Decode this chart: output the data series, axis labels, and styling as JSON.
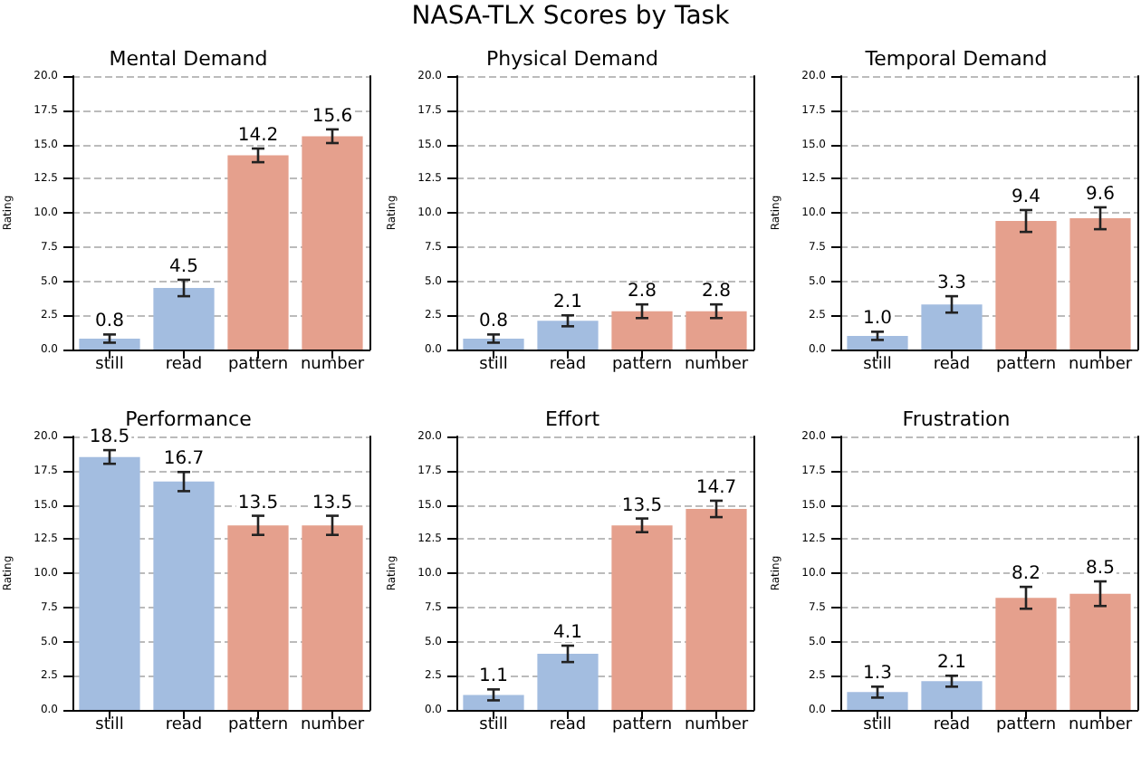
{
  "chart_data": [
    {
      "type": "bar",
      "title": "Mental Demand",
      "annotations": [
        "NASA-TLX Scores by Task"
      ],
      "ylabel": "Rating",
      "categories": [
        "still",
        "read",
        "pattern",
        "number"
      ],
      "values": [
        0.8,
        4.5,
        14.2,
        15.6
      ],
      "errors": [
        0.3,
        0.6,
        0.5,
        0.5
      ],
      "colors": [
        "#a3bde0",
        "#a3bde0",
        "#e5a08d",
        "#e5a08d"
      ],
      "value_labels": [
        "0.8",
        "4.5",
        "14.2",
        "15.6"
      ],
      "ylim": [
        0,
        20
      ],
      "yticks": [
        {
          "value": 0,
          "label": "0.0"
        },
        {
          "value": 2.5,
          "label": "2.5"
        },
        {
          "value": 5,
          "label": "5.0"
        },
        {
          "value": 7.5,
          "label": "7.5"
        },
        {
          "value": 10,
          "label": "10.0"
        },
        {
          "value": 12.5,
          "label": "12.5"
        },
        {
          "value": 15,
          "label": "15.0"
        },
        {
          "value": 17.5,
          "label": "17.5"
        },
        {
          "value": 20,
          "label": "20.0"
        }
      ],
      "grid": "y"
    },
    {
      "type": "bar",
      "title": "Physical Demand",
      "ylabel": "Rating",
      "categories": [
        "still",
        "read",
        "pattern",
        "number"
      ],
      "values": [
        0.8,
        2.1,
        2.8,
        2.8
      ],
      "errors": [
        0.3,
        0.4,
        0.5,
        0.5
      ],
      "colors": [
        "#a3bde0",
        "#a3bde0",
        "#e5a08d",
        "#e5a08d"
      ],
      "value_labels": [
        "0.8",
        "2.1",
        "2.8",
        "2.8"
      ],
      "ylim": [
        0,
        20
      ],
      "yticks": [
        {
          "value": 0,
          "label": "0.0"
        },
        {
          "value": 2.5,
          "label": "2.5"
        },
        {
          "value": 5,
          "label": "5.0"
        },
        {
          "value": 7.5,
          "label": "7.5"
        },
        {
          "value": 10,
          "label": "10.0"
        },
        {
          "value": 12.5,
          "label": "12.5"
        },
        {
          "value": 15,
          "label": "15.0"
        },
        {
          "value": 17.5,
          "label": "17.5"
        },
        {
          "value": 20,
          "label": "20.0"
        }
      ],
      "grid": "y"
    },
    {
      "type": "bar",
      "title": "Temporal Demand",
      "ylabel": "Rating",
      "categories": [
        "still",
        "read",
        "pattern",
        "number"
      ],
      "values": [
        1.0,
        3.3,
        9.4,
        9.6
      ],
      "errors": [
        0.3,
        0.6,
        0.8,
        0.8
      ],
      "colors": [
        "#a3bde0",
        "#a3bde0",
        "#e5a08d",
        "#e5a08d"
      ],
      "value_labels": [
        "1.0",
        "3.3",
        "9.4",
        "9.6"
      ],
      "ylim": [
        0,
        20
      ],
      "yticks": [
        {
          "value": 0,
          "label": "0.0"
        },
        {
          "value": 2.5,
          "label": "2.5"
        },
        {
          "value": 5,
          "label": "5.0"
        },
        {
          "value": 7.5,
          "label": "7.5"
        },
        {
          "value": 10,
          "label": "10.0"
        },
        {
          "value": 12.5,
          "label": "12.5"
        },
        {
          "value": 15,
          "label": "15.0"
        },
        {
          "value": 17.5,
          "label": "17.5"
        },
        {
          "value": 20,
          "label": "20.0"
        }
      ],
      "grid": "y"
    },
    {
      "type": "bar",
      "title": "Performance",
      "ylabel": "Rating",
      "categories": [
        "still",
        "read",
        "pattern",
        "number"
      ],
      "values": [
        18.5,
        16.7,
        13.5,
        13.5
      ],
      "errors": [
        0.5,
        0.7,
        0.7,
        0.7
      ],
      "colors": [
        "#a3bde0",
        "#a3bde0",
        "#e5a08d",
        "#e5a08d"
      ],
      "value_labels": [
        "18.5",
        "16.7",
        "13.5",
        "13.5"
      ],
      "ylim": [
        0,
        20
      ],
      "yticks": [
        {
          "value": 0,
          "label": "0.0"
        },
        {
          "value": 2.5,
          "label": "2.5"
        },
        {
          "value": 5,
          "label": "5.0"
        },
        {
          "value": 7.5,
          "label": "7.5"
        },
        {
          "value": 10,
          "label": "10.0"
        },
        {
          "value": 12.5,
          "label": "12.5"
        },
        {
          "value": 15,
          "label": "15.0"
        },
        {
          "value": 17.5,
          "label": "17.5"
        },
        {
          "value": 20,
          "label": "20.0"
        }
      ],
      "grid": "y"
    },
    {
      "type": "bar",
      "title": "Effort",
      "ylabel": "Rating",
      "categories": [
        "still",
        "read",
        "pattern",
        "number"
      ],
      "values": [
        1.1,
        4.1,
        13.5,
        14.7
      ],
      "errors": [
        0.4,
        0.6,
        0.5,
        0.6
      ],
      "colors": [
        "#a3bde0",
        "#a3bde0",
        "#e5a08d",
        "#e5a08d"
      ],
      "value_labels": [
        "1.1",
        "4.1",
        "13.5",
        "14.7"
      ],
      "ylim": [
        0,
        20
      ],
      "yticks": [
        {
          "value": 0,
          "label": "0.0"
        },
        {
          "value": 2.5,
          "label": "2.5"
        },
        {
          "value": 5,
          "label": "5.0"
        },
        {
          "value": 7.5,
          "label": "7.5"
        },
        {
          "value": 10,
          "label": "10.0"
        },
        {
          "value": 12.5,
          "label": "12.5"
        },
        {
          "value": 15,
          "label": "15.0"
        },
        {
          "value": 17.5,
          "label": "17.5"
        },
        {
          "value": 20,
          "label": "20.0"
        }
      ],
      "grid": "y"
    },
    {
      "type": "bar",
      "title": "Frustration",
      "ylabel": "Rating",
      "categories": [
        "still",
        "read",
        "pattern",
        "number"
      ],
      "values": [
        1.3,
        2.1,
        8.2,
        8.5
      ],
      "errors": [
        0.4,
        0.4,
        0.8,
        0.9
      ],
      "colors": [
        "#a3bde0",
        "#a3bde0",
        "#e5a08d",
        "#e5a08d"
      ],
      "value_labels": [
        "1.3",
        "2.1",
        "8.2",
        "8.5"
      ],
      "ylim": [
        0,
        20
      ],
      "yticks": [
        {
          "value": 0,
          "label": "0.0"
        },
        {
          "value": 2.5,
          "label": "2.5"
        },
        {
          "value": 5,
          "label": "5.0"
        },
        {
          "value": 7.5,
          "label": "7.5"
        },
        {
          "value": 10,
          "label": "10.0"
        },
        {
          "value": 12.5,
          "label": "12.5"
        },
        {
          "value": 15,
          "label": "15.0"
        },
        {
          "value": 17.5,
          "label": "17.5"
        },
        {
          "value": 20,
          "label": "20.0"
        }
      ],
      "grid": "y"
    }
  ]
}
